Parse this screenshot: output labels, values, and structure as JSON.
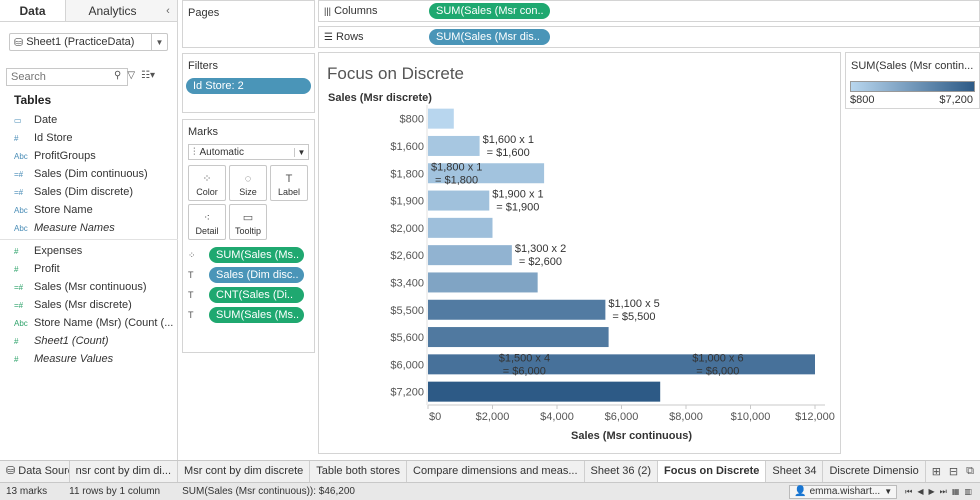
{
  "left_pane": {
    "tabs": [
      "Data",
      "Analytics"
    ],
    "data_source": "Sheet1 (PracticeData)",
    "search_placeholder": "Search",
    "tables_heading": "Tables",
    "dimensions": [
      {
        "icon": "date-icon",
        "glyph": "▭",
        "name": "Date"
      },
      {
        "icon": "number-icon",
        "glyph": "#",
        "name": "Id Store"
      },
      {
        "icon": "abc-icon",
        "glyph": "Abc",
        "name": "ProfitGroups"
      },
      {
        "icon": "bin-icon",
        "glyph": "=#",
        "name": "Sales (Dim continuous)"
      },
      {
        "icon": "bin-icon",
        "glyph": "=#",
        "name": "Sales (Dim discrete)"
      },
      {
        "icon": "abc-icon",
        "glyph": "Abc",
        "name": "Store Name"
      },
      {
        "icon": "abc-icon",
        "glyph": "Abc",
        "name": "Measure Names",
        "italic": true
      }
    ],
    "measures": [
      {
        "icon": "number-icon",
        "glyph": "#",
        "name": "Expenses"
      },
      {
        "icon": "number-icon",
        "glyph": "#",
        "name": "Profit"
      },
      {
        "icon": "bin-icon",
        "glyph": "=#",
        "name": "Sales (Msr continuous)"
      },
      {
        "icon": "bin-icon",
        "glyph": "=#",
        "name": "Sales (Msr discrete)"
      },
      {
        "icon": "abc-icon",
        "glyph": "Abc",
        "name": "Store Name (Msr) (Count (..."
      },
      {
        "icon": "number-icon",
        "glyph": "#",
        "name": "Sheet1 (Count)",
        "italic": true
      },
      {
        "icon": "number-icon",
        "glyph": "#",
        "name": "Measure Values",
        "italic": true
      }
    ]
  },
  "shelves": {
    "pages_label": "Pages",
    "filters_label": "Filters",
    "filter_pill": "Id Store: 2",
    "marks_label": "Marks",
    "mark_type": "Automatic",
    "mark_buttons": [
      {
        "label": "Color",
        "icon": "color-icon",
        "glyph": "⁘"
      },
      {
        "label": "Size",
        "icon": "size-icon",
        "glyph": "◌"
      },
      {
        "label": "Label",
        "icon": "label-icon",
        "glyph": "T"
      },
      {
        "label": "Detail",
        "icon": "detail-icon",
        "glyph": "⁖"
      },
      {
        "label": "Tooltip",
        "icon": "tooltip-icon",
        "glyph": "▭"
      }
    ],
    "mark_pills": [
      {
        "icon": "color-icon",
        "glyph": "⁘",
        "text": "SUM(Sales (Ms..",
        "color": "green"
      },
      {
        "icon": "label-icon",
        "glyph": "T",
        "text": "Sales (Dim disc..",
        "color": "blue"
      },
      {
        "icon": "label-icon",
        "glyph": "T",
        "text": "CNT(Sales (Di..",
        "color": "green"
      },
      {
        "icon": "label-icon",
        "glyph": "T",
        "text": "SUM(Sales (Ms..",
        "color": "green"
      }
    ],
    "columns_label": "Columns",
    "columns_pill": "SUM(Sales (Msr con..",
    "rows_label": "Rows",
    "rows_pill": "SUM(Sales (Msr dis.."
  },
  "legend": {
    "title": "SUM(Sales (Msr contin...",
    "min": "$800",
    "max": "$7,200",
    "color_low": "#b8d6ee",
    "color_high": "#2d5a86"
  },
  "chart_data": {
    "type": "bar",
    "title": "Focus on Discrete",
    "ylabel": "Sales (Msr discrete)",
    "xlabel": "Sales (Msr continuous)",
    "xlim": [
      0,
      12000
    ],
    "x_ticks": [
      "$0",
      "$2,000",
      "$4,000",
      "$6,000",
      "$8,000",
      "$10,000",
      "$12,000"
    ],
    "x_tick_values": [
      0,
      2000,
      4000,
      6000,
      8000,
      10000,
      12000
    ],
    "categories": [
      "$800",
      "$1,600",
      "$1,800",
      "$1,900",
      "$2,000",
      "$2,600",
      "$3,400",
      "$5,500",
      "$5,600",
      "$6,000",
      "$7,200"
    ],
    "values": [
      800,
      1600,
      3600,
      1900,
      2000,
      2600,
      3400,
      5500,
      5600,
      12000,
      7200
    ],
    "annotations": [
      {
        "row": 1,
        "lines": [
          "$1,600 x 1",
          "= $1,600"
        ],
        "at": 1600
      },
      {
        "row": 2,
        "lines": [
          "$1,800 x 1",
          "= $1,800"
        ],
        "at": 0
      },
      {
        "row": 3,
        "lines": [
          "$1,900 x 1",
          "= $1,900"
        ],
        "at": 1900
      },
      {
        "row": 5,
        "lines": [
          "$1,300 x 2",
          "= $2,600"
        ],
        "at": 2600
      },
      {
        "row": 7,
        "lines": [
          "$1,100 x 5",
          "= $5,500"
        ],
        "at": 5500
      },
      {
        "row": 9,
        "lines": [
          "$1,500 x 4",
          "= $6,000"
        ],
        "at": 2100
      },
      {
        "row": 9,
        "lines": [
          "$1,000 x 6",
          "= $6,000"
        ],
        "at": 8100
      }
    ]
  },
  "sheet_tabs": {
    "data_source": "Data Source",
    "tabs": [
      "nsr cont by dim di...",
      "Msr cont by dim discrete",
      "Table both stores",
      "Compare dimensions and meas...",
      "Sheet 36 (2)",
      "Focus on Discrete",
      "Sheet 34",
      "Discrete Dimensio"
    ],
    "active": "Focus on Discrete"
  },
  "status": {
    "marks": "13 marks",
    "rows_cols": "11 rows by 1 column",
    "sum": "SUM(Sales (Msr continuous)): $46,200",
    "user": "emma.wishart..."
  }
}
